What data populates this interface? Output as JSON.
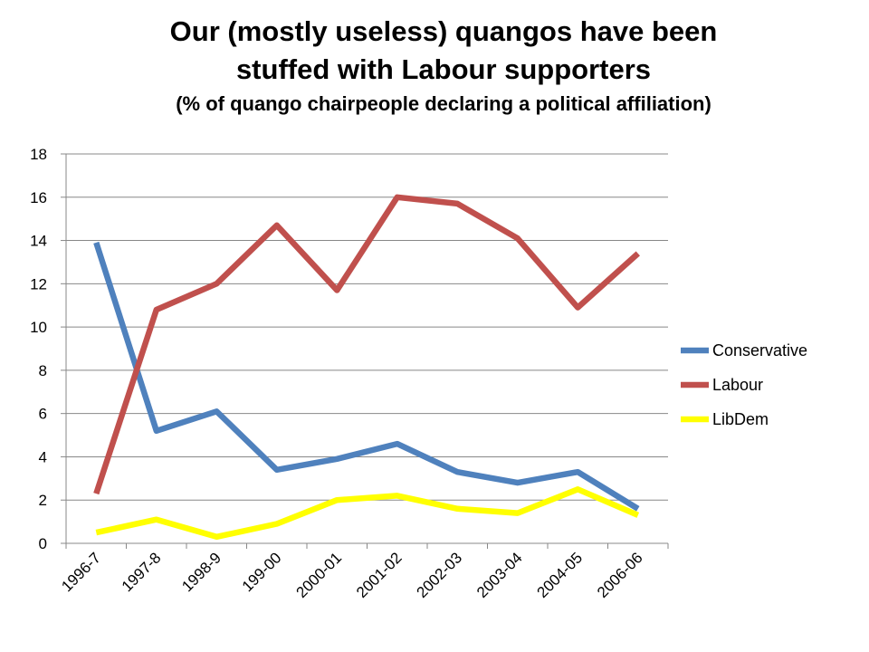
{
  "header": {
    "title_line1": "Our (mostly useless) quangos have been",
    "title_line2": "stuffed with Labour supporters",
    "subtitle": "(% of quango chairpeople declaring a political affiliation)"
  },
  "chart_data": {
    "type": "line",
    "title": "Our (mostly useless) quangos have been stuffed with Labour supporters",
    "subtitle": "(% of quango chairpeople declaring a political affiliation)",
    "categories": [
      "1996-7",
      "1997-8",
      "1998-9",
      "199-00",
      "2000-01",
      "2001-02",
      "2002-03",
      "2003-04",
      "2004-05",
      "2006-06"
    ],
    "series": [
      {
        "name": "Conservative",
        "color": "#4F81BD",
        "values": [
          13.9,
          5.2,
          6.1,
          3.4,
          3.9,
          4.6,
          3.3,
          2.8,
          3.3,
          1.6
        ]
      },
      {
        "name": "Labour",
        "color": "#C0504D",
        "values": [
          2.3,
          10.8,
          12.0,
          14.7,
          11.7,
          16.0,
          15.7,
          14.1,
          10.9,
          13.4
        ]
      },
      {
        "name": "LibDem",
        "color": "#FFFF00",
        "values": [
          0.5,
          1.1,
          0.3,
          0.9,
          2.0,
          2.2,
          1.6,
          1.4,
          2.5,
          1.3
        ]
      }
    ],
    "ylim": [
      0,
      18
    ],
    "yticks": [
      0,
      2,
      4,
      6,
      8,
      10,
      12,
      14,
      16,
      18
    ],
    "grid": true,
    "legend": "right"
  }
}
